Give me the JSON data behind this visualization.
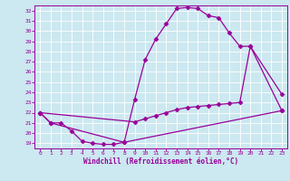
{
  "xlabel": "Windchill (Refroidissement éolien,°C)",
  "bg_color": "#cce8f0",
  "grid_color": "#ffffff",
  "line_color": "#990099",
  "xlim": [
    -0.5,
    23.5
  ],
  "ylim": [
    18.5,
    32.5
  ],
  "xticks": [
    0,
    1,
    2,
    3,
    4,
    5,
    6,
    7,
    8,
    9,
    10,
    11,
    12,
    13,
    14,
    15,
    16,
    17,
    18,
    19,
    20,
    21,
    22,
    23
  ],
  "yticks": [
    19,
    20,
    21,
    22,
    23,
    24,
    25,
    26,
    27,
    28,
    29,
    30,
    31,
    32
  ],
  "line1_x": [
    0,
    1,
    2,
    3,
    4,
    5,
    6,
    7,
    8,
    23
  ],
  "line1_y": [
    22.0,
    21.0,
    21.0,
    20.2,
    19.2,
    19.0,
    18.9,
    18.9,
    19.1,
    22.2
  ],
  "line2_x": [
    0,
    1,
    8,
    9,
    10,
    11,
    12,
    13,
    14,
    15,
    16,
    17,
    18,
    19,
    20,
    23
  ],
  "line2_y": [
    22.0,
    21.0,
    19.1,
    23.3,
    27.2,
    29.2,
    30.7,
    32.2,
    32.3,
    32.2,
    31.5,
    31.3,
    29.8,
    28.5,
    28.5,
    23.8
  ],
  "line3_x": [
    0,
    9,
    10,
    11,
    12,
    13,
    14,
    15,
    16,
    17,
    18,
    19,
    20,
    23
  ],
  "line3_y": [
    22.0,
    21.1,
    21.4,
    21.7,
    22.0,
    22.3,
    22.5,
    22.6,
    22.7,
    22.8,
    22.9,
    23.0,
    28.5,
    22.2
  ],
  "marker": "D",
  "marker_size": 2.5,
  "line_width": 0.9
}
